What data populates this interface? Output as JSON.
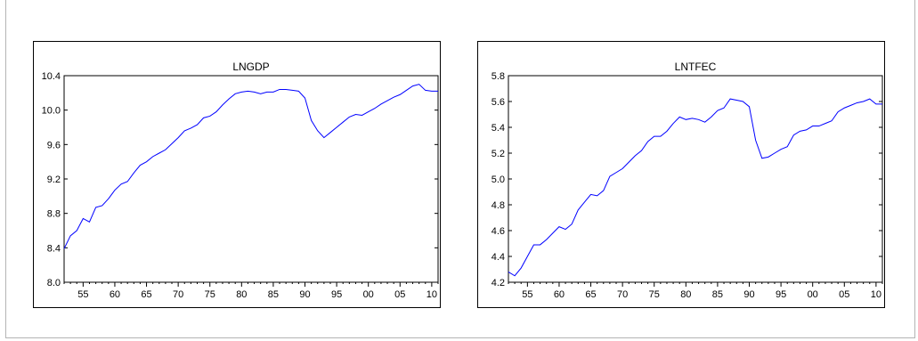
{
  "chart_data": [
    {
      "type": "line",
      "title": "LNGDP",
      "xlabel": "",
      "ylabel": "",
      "xlim": [
        1952,
        2011
      ],
      "ylim": [
        8.0,
        10.4
      ],
      "yticks": [
        "8.0",
        "8.4",
        "8.8",
        "9.2",
        "9.6",
        "10.0",
        "10.4"
      ],
      "xticks": [
        {
          "x": 1955,
          "label": "55"
        },
        {
          "x": 1960,
          "label": "60"
        },
        {
          "x": 1965,
          "label": "65"
        },
        {
          "x": 1970,
          "label": "70"
        },
        {
          "x": 1975,
          "label": "75"
        },
        {
          "x": 1980,
          "label": "80"
        },
        {
          "x": 1985,
          "label": "85"
        },
        {
          "x": 1990,
          "label": "90"
        },
        {
          "x": 1995,
          "label": "95"
        },
        {
          "x": 2000,
          "label": "00"
        },
        {
          "x": 2005,
          "label": "05"
        },
        {
          "x": 2010,
          "label": "10"
        }
      ],
      "grid": false,
      "line_color": "#0000ff",
      "series": [
        {
          "x": [
            1952,
            1953,
            1954,
            1955,
            1956,
            1957,
            1958,
            1959,
            1960,
            1961,
            1962,
            1963,
            1964,
            1965,
            1966,
            1967,
            1968,
            1969,
            1970,
            1971,
            1972,
            1973,
            1974,
            1975,
            1976,
            1977,
            1978,
            1979,
            1980,
            1981,
            1982,
            1983,
            1984,
            1985,
            1986,
            1987,
            1988,
            1989,
            1990,
            1991,
            1992,
            1993,
            1994,
            1995,
            1996,
            1997,
            1998,
            1999,
            2000,
            2001,
            2002,
            2003,
            2004,
            2005,
            2006,
            2007,
            2008,
            2009,
            2010,
            2011
          ],
          "values": [
            8.39,
            8.54,
            8.6,
            8.74,
            8.7,
            8.87,
            8.89,
            8.97,
            9.07,
            9.14,
            9.17,
            9.27,
            9.36,
            9.4,
            9.46,
            9.5,
            9.54,
            9.61,
            9.68,
            9.76,
            9.79,
            9.83,
            9.91,
            9.93,
            9.98,
            10.06,
            10.13,
            10.19,
            10.21,
            10.22,
            10.21,
            10.19,
            10.21,
            10.21,
            10.24,
            10.24,
            10.23,
            10.22,
            10.14,
            9.88,
            9.76,
            9.68,
            9.74,
            9.8,
            9.86,
            9.92,
            9.95,
            9.94,
            9.98,
            10.02,
            10.07,
            10.11,
            10.15,
            10.18,
            10.23,
            10.28,
            10.3,
            10.23,
            10.22,
            10.22
          ]
        }
      ]
    },
    {
      "type": "line",
      "title": "LNTFEC",
      "xlabel": "",
      "ylabel": "",
      "xlim": [
        1952,
        2011
      ],
      "ylim": [
        4.2,
        5.8
      ],
      "yticks": [
        "4.2",
        "4.4",
        "4.6",
        "4.8",
        "5.0",
        "5.2",
        "5.4",
        "5.6",
        "5.8"
      ],
      "xticks": [
        {
          "x": 1955,
          "label": "55"
        },
        {
          "x": 1960,
          "label": "60"
        },
        {
          "x": 1965,
          "label": "65"
        },
        {
          "x": 1970,
          "label": "70"
        },
        {
          "x": 1975,
          "label": "75"
        },
        {
          "x": 1980,
          "label": "80"
        },
        {
          "x": 1985,
          "label": "85"
        },
        {
          "x": 1990,
          "label": "90"
        },
        {
          "x": 1995,
          "label": "95"
        },
        {
          "x": 2000,
          "label": "00"
        },
        {
          "x": 2005,
          "label": "05"
        },
        {
          "x": 2010,
          "label": "10"
        }
      ],
      "grid": false,
      "line_color": "#0000ff",
      "series": [
        {
          "x": [
            1952,
            1953,
            1954,
            1955,
            1956,
            1957,
            1958,
            1959,
            1960,
            1961,
            1962,
            1963,
            1964,
            1965,
            1966,
            1967,
            1968,
            1969,
            1970,
            1971,
            1972,
            1973,
            1974,
            1975,
            1976,
            1977,
            1978,
            1979,
            1980,
            1981,
            1982,
            1983,
            1984,
            1985,
            1986,
            1987,
            1988,
            1989,
            1990,
            1991,
            1992,
            1993,
            1994,
            1995,
            1996,
            1997,
            1998,
            1999,
            2000,
            2001,
            2002,
            2003,
            2004,
            2005,
            2006,
            2007,
            2008,
            2009,
            2010,
            2011
          ],
          "values": [
            4.28,
            4.25,
            4.31,
            4.4,
            4.49,
            4.49,
            4.53,
            4.58,
            4.63,
            4.61,
            4.65,
            4.76,
            4.82,
            4.88,
            4.87,
            4.91,
            5.02,
            5.05,
            5.08,
            5.13,
            5.18,
            5.22,
            5.29,
            5.33,
            5.33,
            5.37,
            5.43,
            5.48,
            5.46,
            5.47,
            5.46,
            5.44,
            5.48,
            5.53,
            5.55,
            5.62,
            5.61,
            5.6,
            5.56,
            5.3,
            5.16,
            5.17,
            5.2,
            5.23,
            5.25,
            5.34,
            5.37,
            5.38,
            5.41,
            5.41,
            5.43,
            5.45,
            5.52,
            5.55,
            5.57,
            5.59,
            5.6,
            5.62,
            5.58,
            5.58
          ]
        }
      ]
    }
  ]
}
